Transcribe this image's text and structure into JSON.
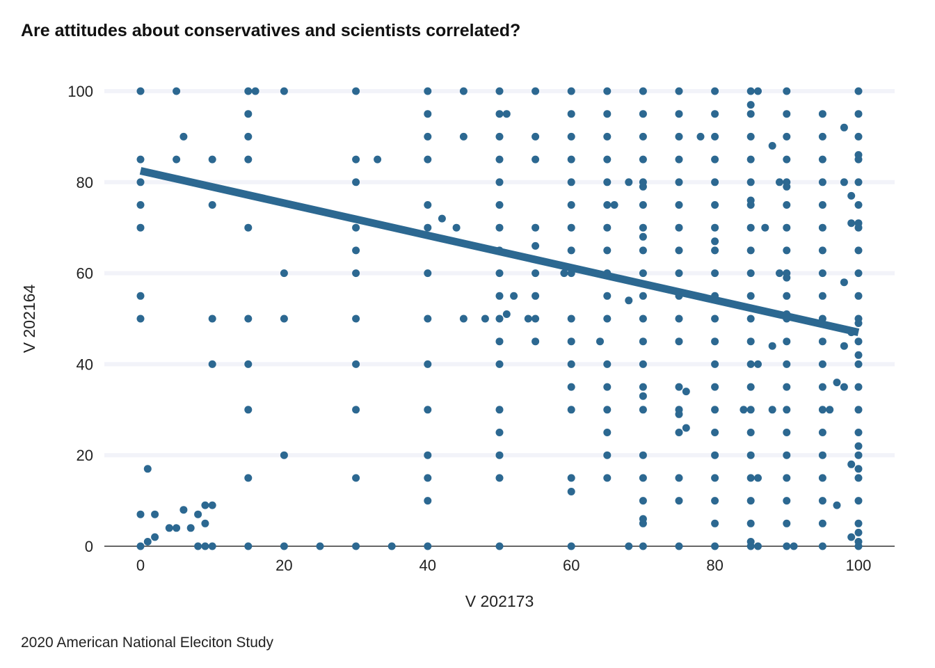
{
  "title": "Are attitudes about conservatives and scientists correlated?",
  "caption": "2020 American National Eleciton Study",
  "chart_data": {
    "type": "scatter",
    "title": "Are attitudes about conservatives and scientists correlated?",
    "xlabel": "V 202173",
    "ylabel": "V 202164",
    "xlim": [
      -5,
      105
    ],
    "ylim": [
      0,
      100
    ],
    "x_ticks": [
      0,
      20,
      40,
      60,
      80,
      100
    ],
    "y_ticks": [
      0,
      20,
      40,
      60,
      80,
      100
    ],
    "grid": "horizontal",
    "colors": {
      "points": "#2c6891",
      "trend": "#2c6891",
      "grid": "#f2f3f9",
      "baseline": "#333333"
    },
    "trend_line": {
      "x": [
        0,
        100
      ],
      "y": [
        82.5,
        47
      ]
    },
    "columns": [
      {
        "x": 0,
        "y": [
          0,
          7,
          50,
          55,
          70,
          75,
          80,
          85,
          100
        ]
      },
      {
        "x": 5,
        "y": [
          4,
          85,
          100
        ]
      },
      {
        "x": 10,
        "y": [
          0,
          9,
          40,
          50,
          75,
          85
        ]
      },
      {
        "x": 15,
        "y": [
          0,
          15,
          30,
          40,
          50,
          70,
          85,
          90,
          95,
          100
        ]
      },
      {
        "x": 20,
        "y": [
          0,
          20,
          50,
          60,
          100
        ]
      },
      {
        "x": 30,
        "y": [
          0,
          15,
          30,
          40,
          50,
          60,
          65,
          70,
          80,
          85,
          100
        ]
      },
      {
        "x": 40,
        "y": [
          0,
          10,
          15,
          20,
          30,
          40,
          50,
          60,
          70,
          75,
          85,
          90,
          95,
          100
        ]
      },
      {
        "x": 50,
        "y": [
          0,
          15,
          20,
          25,
          30,
          40,
          45,
          50,
          55,
          60,
          65,
          70,
          75,
          80,
          85,
          90,
          95,
          100
        ]
      },
      {
        "x": 55,
        "y": [
          45,
          50,
          55,
          60,
          70,
          85,
          90,
          100
        ]
      },
      {
        "x": 60,
        "y": [
          0,
          12,
          15,
          30,
          35,
          40,
          45,
          50,
          60,
          65,
          70,
          75,
          80,
          85,
          90,
          95,
          100
        ]
      },
      {
        "x": 65,
        "y": [
          15,
          20,
          25,
          30,
          35,
          40,
          50,
          55,
          60,
          65,
          70,
          75,
          80,
          85,
          90,
          95,
          100
        ]
      },
      {
        "x": 70,
        "y": [
          0,
          5,
          10,
          15,
          20,
          30,
          35,
          40,
          45,
          50,
          55,
          60,
          65,
          70,
          75,
          80,
          85,
          90,
          95,
          100
        ]
      },
      {
        "x": 75,
        "y": [
          0,
          10,
          15,
          25,
          30,
          35,
          45,
          50,
          55,
          60,
          65,
          70,
          75,
          80,
          85,
          90,
          95,
          100
        ]
      },
      {
        "x": 80,
        "y": [
          0,
          5,
          10,
          15,
          20,
          25,
          30,
          35,
          40,
          45,
          50,
          55,
          60,
          65,
          70,
          75,
          80,
          85,
          90,
          95,
          100
        ]
      },
      {
        "x": 85,
        "y": [
          0,
          5,
          10,
          15,
          20,
          25,
          30,
          35,
          40,
          45,
          50,
          55,
          60,
          65,
          70,
          75,
          80,
          85,
          90,
          95,
          100
        ]
      },
      {
        "x": 90,
        "y": [
          0,
          5,
          10,
          15,
          20,
          25,
          30,
          35,
          40,
          45,
          50,
          55,
          60,
          65,
          70,
          75,
          80,
          85,
          90,
          95,
          100
        ]
      },
      {
        "x": 95,
        "y": [
          0,
          5,
          10,
          15,
          20,
          25,
          30,
          35,
          40,
          45,
          50,
          55,
          60,
          65,
          70,
          75,
          80,
          85,
          90,
          95
        ]
      },
      {
        "x": 100,
        "y": [
          0,
          5,
          10,
          15,
          20,
          25,
          30,
          35,
          40,
          45,
          50,
          55,
          60,
          65,
          70,
          75,
          80,
          85,
          90,
          95,
          100
        ]
      }
    ],
    "extra_points": [
      [
        1,
        1
      ],
      [
        2,
        2
      ],
      [
        1,
        17
      ],
      [
        2,
        7
      ],
      [
        4,
        4
      ],
      [
        6,
        8
      ],
      [
        7,
        4
      ],
      [
        8,
        0
      ],
      [
        8,
        7
      ],
      [
        9,
        5
      ],
      [
        9,
        9
      ],
      [
        9,
        0
      ],
      [
        6,
        90
      ],
      [
        16,
        100
      ],
      [
        25,
        0
      ],
      [
        33,
        85
      ],
      [
        35,
        0
      ],
      [
        42,
        72
      ],
      [
        44,
        70
      ],
      [
        45,
        50
      ],
      [
        45,
        90
      ],
      [
        45,
        100
      ],
      [
        48,
        50
      ],
      [
        51,
        51
      ],
      [
        51,
        95
      ],
      [
        52,
        55
      ],
      [
        54,
        50
      ],
      [
        55,
        66
      ],
      [
        59,
        60
      ],
      [
        64,
        45
      ],
      [
        66,
        75
      ],
      [
        68,
        54
      ],
      [
        68,
        80
      ],
      [
        68,
        0
      ],
      [
        70,
        33
      ],
      [
        70,
        6
      ],
      [
        70,
        79
      ],
      [
        70,
        68
      ],
      [
        75,
        29
      ],
      [
        76,
        26
      ],
      [
        76,
        34
      ],
      [
        78,
        90
      ],
      [
        80,
        67
      ],
      [
        84,
        30
      ],
      [
        85,
        76
      ],
      [
        85,
        97
      ],
      [
        85,
        1
      ],
      [
        86,
        40
      ],
      [
        86,
        15
      ],
      [
        86,
        0
      ],
      [
        86,
        100
      ],
      [
        87,
        70
      ],
      [
        88,
        88
      ],
      [
        88,
        44
      ],
      [
        88,
        30
      ],
      [
        89,
        80
      ],
      [
        89,
        60
      ],
      [
        90,
        59
      ],
      [
        90,
        79
      ],
      [
        90,
        51
      ],
      [
        91,
        0
      ],
      [
        96,
        30
      ],
      [
        97,
        9
      ],
      [
        97,
        36
      ],
      [
        98,
        92
      ],
      [
        98,
        58
      ],
      [
        98,
        44
      ],
      [
        98,
        35
      ],
      [
        98,
        80
      ],
      [
        99,
        71
      ],
      [
        99,
        77
      ],
      [
        99,
        18
      ],
      [
        99,
        2
      ],
      [
        99,
        47
      ],
      [
        100,
        86
      ],
      [
        100,
        71
      ],
      [
        100,
        49
      ],
      [
        100,
        42
      ],
      [
        100,
        22
      ],
      [
        100,
        17
      ],
      [
        100,
        3
      ],
      [
        100,
        1
      ]
    ]
  }
}
